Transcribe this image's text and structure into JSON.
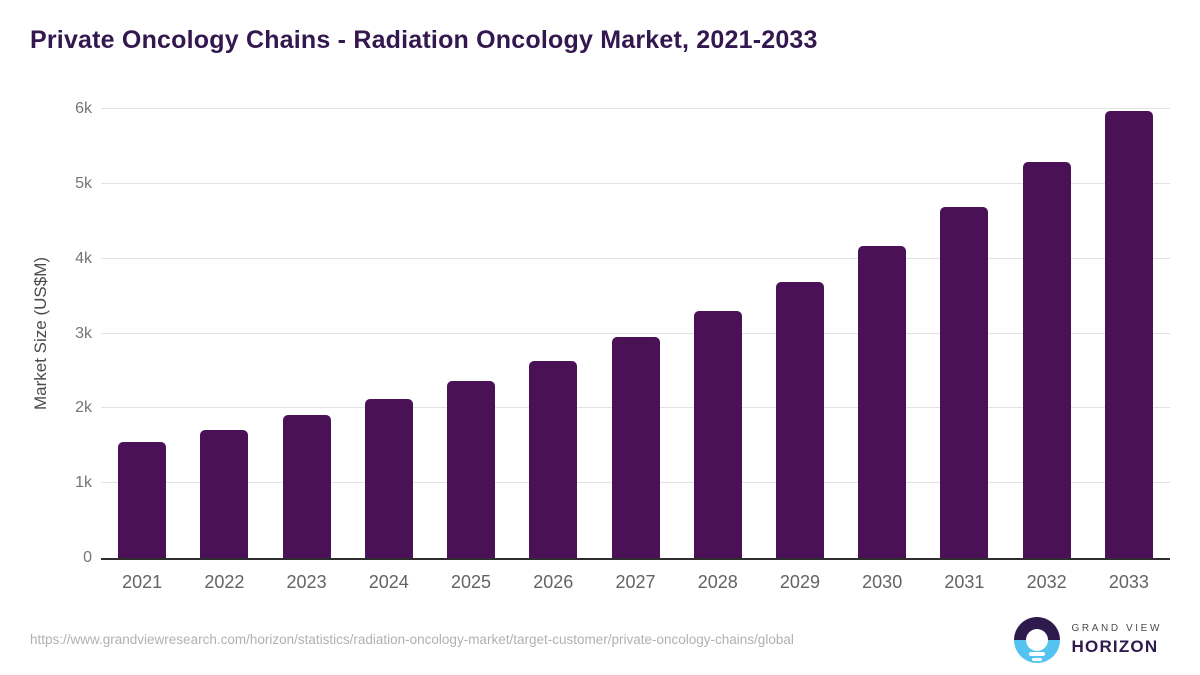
{
  "title": "Private Oncology Chains - Radiation Oncology Market, 2021-2033",
  "chart_data": {
    "type": "bar",
    "title": "Private Oncology Chains - Radiation Oncology Market, 2021-2033",
    "categories": [
      "2021",
      "2022",
      "2023",
      "2024",
      "2025",
      "2026",
      "2027",
      "2028",
      "2029",
      "2030",
      "2031",
      "2032",
      "2033"
    ],
    "values": [
      1550,
      1710,
      1910,
      2120,
      2360,
      2630,
      2950,
      3300,
      3690,
      4170,
      4690,
      5290,
      5970
    ],
    "xlabel": "",
    "ylabel": "Market Size (US$M)",
    "ylim": [
      0,
      6000
    ],
    "yticks": [
      {
        "value": 0,
        "label": "0"
      },
      {
        "value": 1000,
        "label": "1k"
      },
      {
        "value": 2000,
        "label": "2k"
      },
      {
        "value": 3000,
        "label": "3k"
      },
      {
        "value": 4000,
        "label": "4k"
      },
      {
        "value": 5000,
        "label": "5k"
      },
      {
        "value": 6000,
        "label": "6k"
      }
    ],
    "grid": "horizontal-only",
    "legend": "none",
    "bar_color": "#4a1157"
  },
  "footer": {
    "source_url": "https://www.grandviewresearch.com/horizon/statistics/radiation-oncology-market/target-customer/private-oncology-chains/global",
    "logo": {
      "brand_top": "GRAND VIEW",
      "brand_bottom": "HORIZON"
    }
  },
  "colors": {
    "bar": "#4a1157",
    "title_text": "#33184f",
    "gridline": "#e3e3e3",
    "axis_baseline": "#2e2e2e",
    "tick_text": "#757575",
    "x_tick_text": "#636363",
    "url_text": "#b1b1b1",
    "logo_purple": "#2e1a4d",
    "logo_blue": "#55c3f0"
  }
}
